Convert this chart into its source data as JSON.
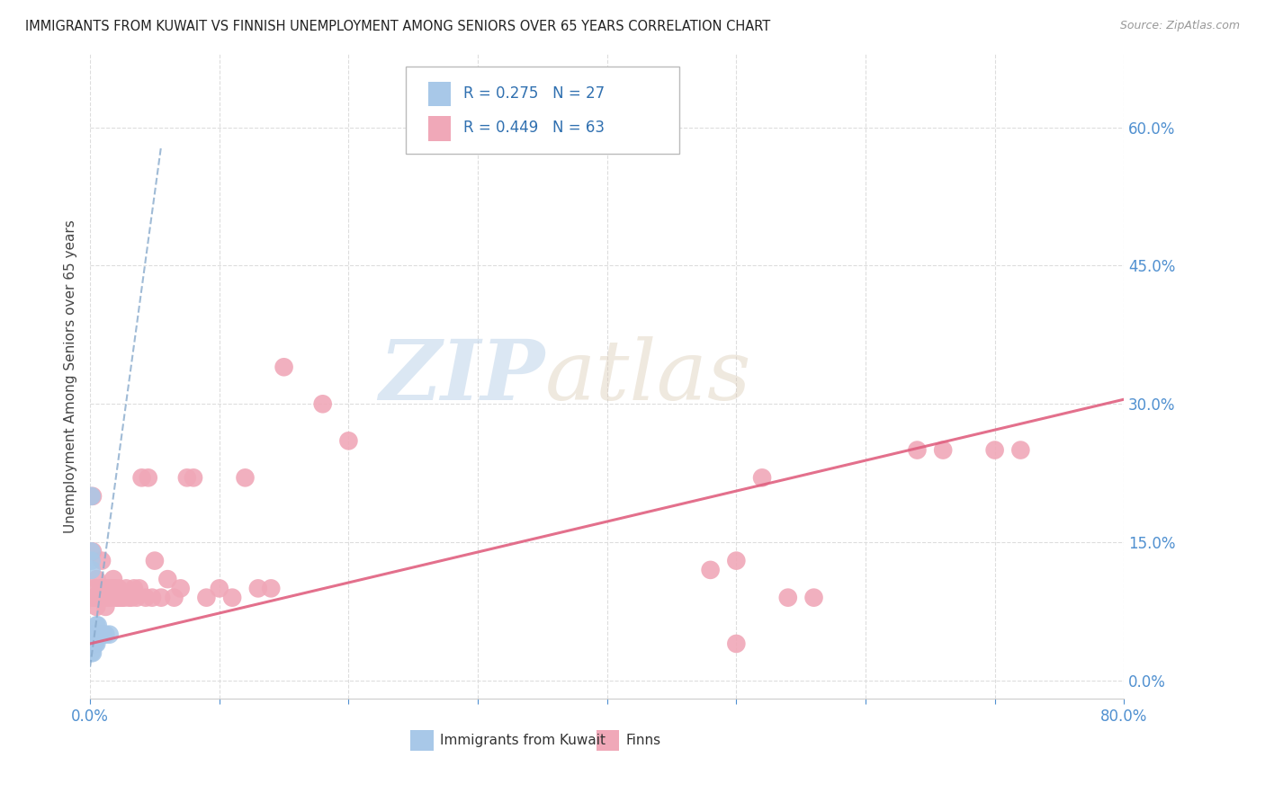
{
  "title": "IMMIGRANTS FROM KUWAIT VS FINNISH UNEMPLOYMENT AMONG SENIORS OVER 65 YEARS CORRELATION CHART",
  "source": "Source: ZipAtlas.com",
  "ylabel": "Unemployment Among Seniors over 65 years",
  "xlim": [
    0.0,
    0.8
  ],
  "ylim": [
    -0.02,
    0.68
  ],
  "xticks": [
    0.0,
    0.1,
    0.2,
    0.3,
    0.4,
    0.5,
    0.6,
    0.7,
    0.8
  ],
  "xtick_labels_show": [
    "0.0%",
    "",
    "",
    "",
    "",
    "",
    "",
    "",
    "80.0%"
  ],
  "yticks": [
    0.0,
    0.15,
    0.3,
    0.45,
    0.6
  ],
  "ytick_labels": [
    "0.0%",
    "15.0%",
    "30.0%",
    "45.0%",
    "60.0%"
  ],
  "background_color": "#ffffff",
  "grid_color": "#dddddd",
  "watermark_zip": "ZIP",
  "watermark_atlas": "atlas",
  "legend_r1": "R = 0.275",
  "legend_n1": "N = 27",
  "legend_r2": "R = 0.449",
  "legend_n2": "N = 63",
  "blue_color": "#a8c8e8",
  "blue_trend_color": "#88aacc",
  "pink_color": "#f0a8b8",
  "pink_trend_color": "#e06080",
  "blue_points_x": [
    0.001,
    0.001,
    0.001,
    0.001,
    0.001,
    0.002,
    0.002,
    0.002,
    0.002,
    0.002,
    0.003,
    0.003,
    0.003,
    0.003,
    0.004,
    0.004,
    0.004,
    0.005,
    0.005,
    0.006,
    0.006,
    0.007,
    0.008,
    0.01,
    0.012,
    0.015,
    0.001
  ],
  "blue_points_y": [
    0.2,
    0.14,
    0.13,
    0.12,
    0.04,
    0.05,
    0.04,
    0.04,
    0.03,
    0.04,
    0.05,
    0.04,
    0.05,
    0.04,
    0.05,
    0.05,
    0.04,
    0.06,
    0.04,
    0.06,
    0.05,
    0.05,
    0.05,
    0.05,
    0.05,
    0.05,
    0.03
  ],
  "pink_points_x": [
    0.001,
    0.002,
    0.002,
    0.003,
    0.004,
    0.005,
    0.005,
    0.006,
    0.007,
    0.008,
    0.009,
    0.01,
    0.011,
    0.012,
    0.013,
    0.014,
    0.015,
    0.016,
    0.017,
    0.018,
    0.019,
    0.02,
    0.021,
    0.022,
    0.023,
    0.025,
    0.026,
    0.028,
    0.03,
    0.032,
    0.034,
    0.036,
    0.038,
    0.04,
    0.043,
    0.045,
    0.048,
    0.05,
    0.055,
    0.06,
    0.065,
    0.07,
    0.075,
    0.08,
    0.09,
    0.1,
    0.11,
    0.12,
    0.13,
    0.14,
    0.15,
    0.18,
    0.2,
    0.48,
    0.5,
    0.52,
    0.54,
    0.56,
    0.7,
    0.72,
    0.64,
    0.66,
    0.5
  ],
  "pink_points_y": [
    0.09,
    0.2,
    0.14,
    0.09,
    0.1,
    0.11,
    0.08,
    0.09,
    0.09,
    0.1,
    0.13,
    0.09,
    0.1,
    0.08,
    0.09,
    0.1,
    0.09,
    0.09,
    0.1,
    0.11,
    0.1,
    0.09,
    0.09,
    0.1,
    0.09,
    0.09,
    0.09,
    0.1,
    0.09,
    0.09,
    0.1,
    0.09,
    0.1,
    0.22,
    0.09,
    0.22,
    0.09,
    0.13,
    0.09,
    0.11,
    0.09,
    0.1,
    0.22,
    0.22,
    0.09,
    0.1,
    0.09,
    0.22,
    0.1,
    0.1,
    0.34,
    0.3,
    0.26,
    0.12,
    0.13,
    0.22,
    0.09,
    0.09,
    0.25,
    0.25,
    0.25,
    0.25,
    0.04
  ],
  "blue_trend_x": [
    0.0,
    0.055
  ],
  "blue_trend_y_start": 0.015,
  "blue_trend_y_end": 0.58,
  "pink_trend_x": [
    0.0,
    0.8
  ],
  "pink_trend_y_start": 0.04,
  "pink_trend_y_end": 0.305
}
